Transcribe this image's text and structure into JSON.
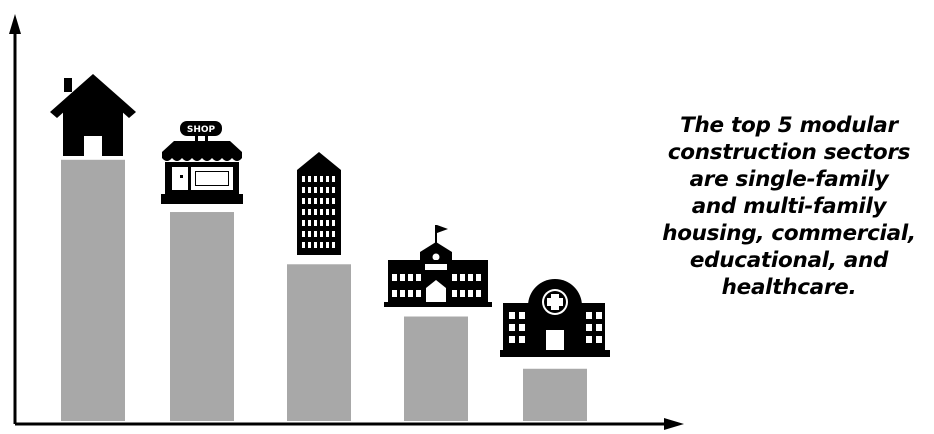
{
  "chart_data": {
    "type": "bar",
    "categories": [
      "single-family",
      "multi-family",
      "commercial",
      "educational",
      "healthcare"
    ],
    "values": [
      5,
      4,
      3,
      2,
      1
    ],
    "category_icons": [
      "house-icon",
      "shop-icon",
      "office-tower-icon",
      "school-icon",
      "hospital-icon"
    ],
    "ylim": [
      0,
      5.8
    ],
    "grid": false,
    "axes_arrows": true,
    "colors": {
      "bar": "#a8a8a8",
      "icon": "#000000",
      "axis": "#000000"
    }
  },
  "shop_sign_text": "SHOP",
  "caption_lines": [
    "The top 5 modular",
    "construction sectors",
    "are single-family",
    "and multi-family",
    "housing, commercial,",
    "educational, and",
    "healthcare."
  ]
}
